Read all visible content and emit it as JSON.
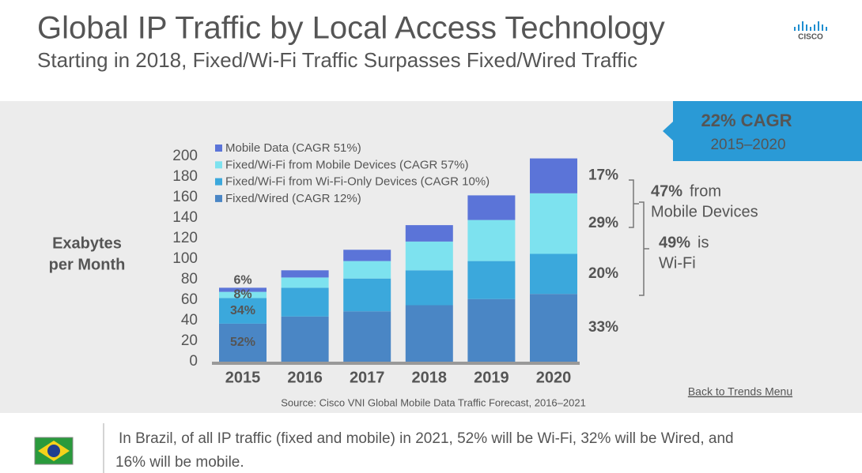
{
  "chart_data": {
    "type": "bar",
    "stacked": true,
    "title": "Global IP Traffic by Local Access Technology",
    "subtitle": "Starting in 2018, Fixed/Wi-Fi Traffic Surpasses Fixed/Wired Traffic",
    "y_label": [
      "Exabytes",
      "per Month"
    ],
    "categories": [
      "2015",
      "2016",
      "2017",
      "2018",
      "2019",
      "2020"
    ],
    "series": [
      {
        "name": "Fixed/Wired (CAGR 12%)",
        "color": "#4a86c5",
        "values": [
          37,
          44,
          49,
          55,
          61,
          66
        ]
      },
      {
        "name": "Fixed/Wi-Fi from Wi-Fi-Only Devices (CAGR 10%)",
        "color": "#3ba8dc",
        "values": [
          25,
          28,
          32,
          34,
          37,
          39
        ]
      },
      {
        "name": "Fixed/Wi-Fi from Mobile Devices (CAGR 57%)",
        "color": "#7de2ef",
        "values": [
          6,
          10,
          17,
          28,
          40,
          59
        ]
      },
      {
        "name": "Mobile Data (CAGR 51%)",
        "color": "#5b74d8",
        "values": [
          4,
          7,
          11,
          16,
          24,
          34
        ]
      }
    ],
    "ylim": [
      0,
      200
    ],
    "yticks": [
      0,
      20,
      40,
      60,
      80,
      100,
      120,
      140,
      160,
      180,
      200
    ],
    "grid": false,
    "first_year_shares": [
      "52%",
      "34%",
      "8%",
      "6%"
    ],
    "last_year_shares": [
      "33%",
      "20%",
      "29%",
      "17%"
    ],
    "callouts": [
      {
        "value_text": "47%",
        "text": [
          "from",
          "Mobile Devices"
        ]
      },
      {
        "value_text": "49%",
        "text": [
          "is",
          "Wi-Fi"
        ]
      }
    ],
    "cagr_box": {
      "title": "22% CAGR",
      "period": "2015–2020"
    },
    "source": "Source: Cisco VNI Global Mobile Data Traffic Forecast, 2016–2021"
  },
  "logo": "CISCO",
  "link": "Back to Trends Menu",
  "footer": [
    "In Brazil, of all IP traffic (fixed and mobile) in 2021, 52% will be Wi-Fi, 32% will be Wired, and",
    "16% will be mobile."
  ]
}
